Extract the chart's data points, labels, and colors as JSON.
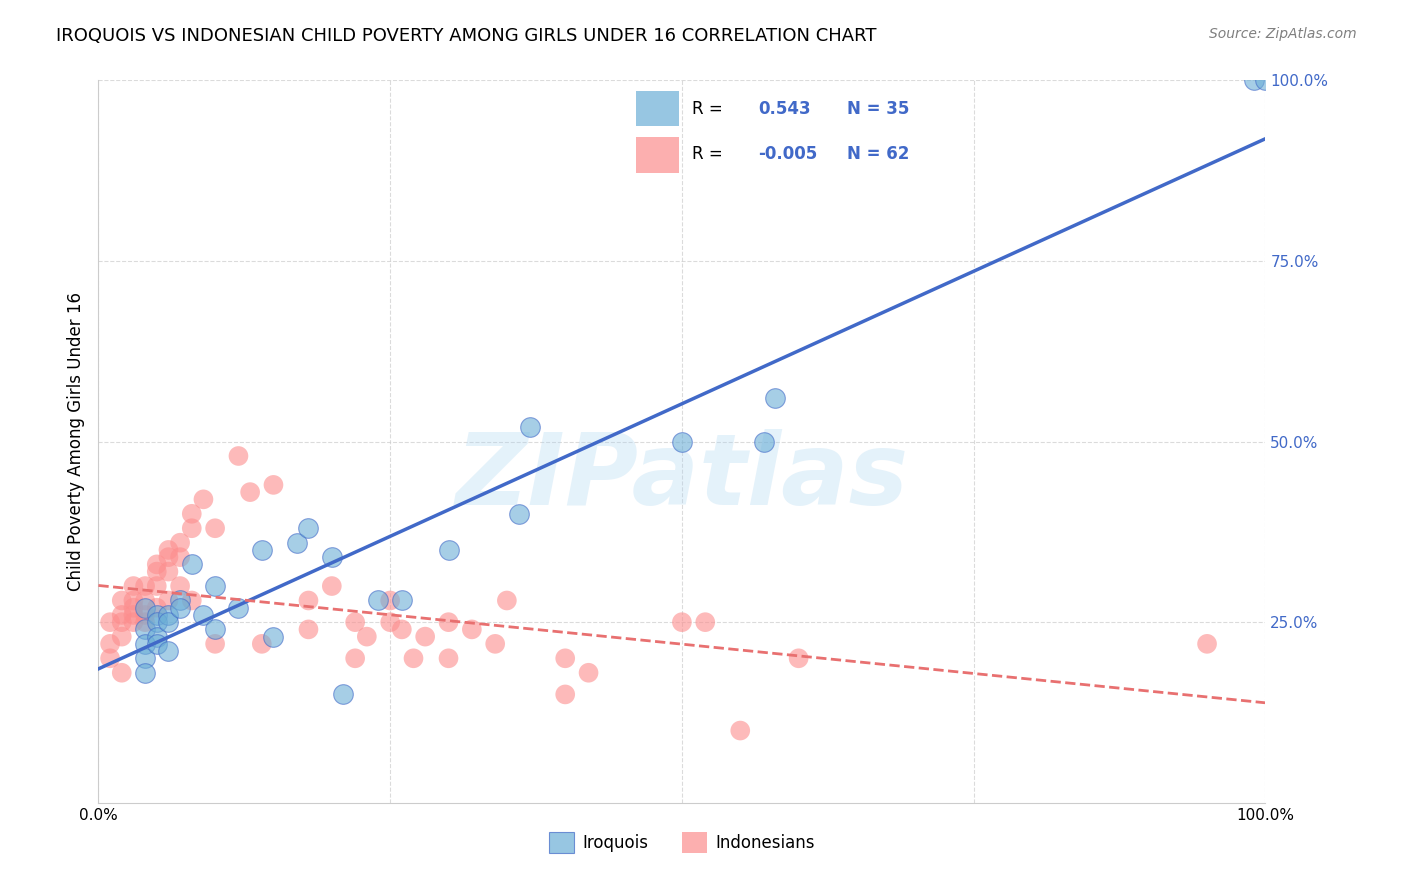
{
  "title": "IROQUOIS VS INDONESIAN CHILD POVERTY AMONG GIRLS UNDER 16 CORRELATION CHART",
  "source": "Source: ZipAtlas.com",
  "ylabel": "Child Poverty Among Girls Under 16",
  "watermark": "ZIPatlas",
  "legend_iroquois_R": "0.543",
  "legend_iroquois_N": "35",
  "legend_indonesians_R": "-0.005",
  "legend_indonesians_N": "62",
  "xlim": [
    0,
    1
  ],
  "ylim": [
    0,
    1
  ],
  "background_color": "#ffffff",
  "grid_color": "#cccccc",
  "iroquois_color": "#6baed6",
  "indonesians_color": "#fc8d8d",
  "iroquois_line_color": "#4169c8",
  "indonesians_line_color": "#e87070",
  "iroquois_scatter_x": [
    0.04,
    0.04,
    0.04,
    0.04,
    0.04,
    0.05,
    0.05,
    0.05,
    0.05,
    0.06,
    0.06,
    0.06,
    0.07,
    0.07,
    0.08,
    0.09,
    0.1,
    0.1,
    0.12,
    0.14,
    0.15,
    0.17,
    0.18,
    0.2,
    0.21,
    0.24,
    0.26,
    0.3,
    0.36,
    0.37,
    0.5,
    0.57,
    0.58,
    0.99,
    1.0
  ],
  "iroquois_scatter_y": [
    0.27,
    0.24,
    0.22,
    0.2,
    0.18,
    0.26,
    0.25,
    0.23,
    0.22,
    0.26,
    0.25,
    0.21,
    0.28,
    0.27,
    0.33,
    0.26,
    0.3,
    0.24,
    0.27,
    0.35,
    0.23,
    0.36,
    0.38,
    0.34,
    0.15,
    0.28,
    0.28,
    0.35,
    0.4,
    0.52,
    0.5,
    0.5,
    0.56,
    1.0,
    1.0
  ],
  "indonesians_scatter_x": [
    0.01,
    0.01,
    0.01,
    0.02,
    0.02,
    0.02,
    0.02,
    0.02,
    0.03,
    0.03,
    0.03,
    0.03,
    0.03,
    0.04,
    0.04,
    0.04,
    0.04,
    0.05,
    0.05,
    0.05,
    0.05,
    0.06,
    0.06,
    0.06,
    0.06,
    0.07,
    0.07,
    0.07,
    0.08,
    0.08,
    0.08,
    0.09,
    0.1,
    0.1,
    0.12,
    0.13,
    0.14,
    0.15,
    0.18,
    0.18,
    0.2,
    0.22,
    0.22,
    0.23,
    0.25,
    0.25,
    0.26,
    0.27,
    0.28,
    0.3,
    0.3,
    0.32,
    0.34,
    0.35,
    0.4,
    0.4,
    0.42,
    0.5,
    0.52,
    0.55,
    0.6,
    0.95
  ],
  "indonesians_scatter_y": [
    0.25,
    0.22,
    0.2,
    0.28,
    0.26,
    0.25,
    0.23,
    0.18,
    0.3,
    0.28,
    0.27,
    0.26,
    0.25,
    0.3,
    0.28,
    0.26,
    0.25,
    0.33,
    0.32,
    0.3,
    0.27,
    0.35,
    0.34,
    0.32,
    0.28,
    0.36,
    0.34,
    0.3,
    0.4,
    0.38,
    0.28,
    0.42,
    0.38,
    0.22,
    0.48,
    0.43,
    0.22,
    0.44,
    0.28,
    0.24,
    0.3,
    0.25,
    0.2,
    0.23,
    0.28,
    0.25,
    0.24,
    0.2,
    0.23,
    0.25,
    0.2,
    0.24,
    0.22,
    0.28,
    0.15,
    0.2,
    0.18,
    0.25,
    0.25,
    0.1,
    0.2,
    0.22
  ]
}
